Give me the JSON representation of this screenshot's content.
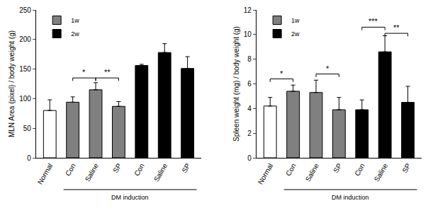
{
  "chart_data": [
    {
      "type": "bar",
      "y_label": "MLN Area (pixel) / body weight (g)",
      "categories": [
        "Normal",
        "Con",
        "Saline",
        "SP",
        "Con",
        "Saline",
        "SP"
      ],
      "ylim": [
        0,
        250
      ],
      "yticks": [
        0,
        50,
        100,
        150,
        200,
        250
      ],
      "grid": false,
      "legend": "upper left",
      "series": [
        {
          "color": "#ffffff",
          "values": [
            80,
            null,
            null,
            null,
            null,
            null,
            null
          ],
          "errors": [
            18,
            null,
            null,
            null,
            null,
            null,
            null
          ]
        },
        {
          "name": "1w",
          "color": "#808080",
          "values": [
            null,
            94,
            115,
            87,
            null,
            null,
            null
          ],
          "errors": [
            null,
            9,
            12,
            8,
            null,
            null,
            null
          ]
        },
        {
          "name": "2w",
          "color": "#000000",
          "values": [
            null,
            null,
            null,
            null,
            156,
            178,
            151
          ],
          "errors": [
            null,
            null,
            null,
            null,
            2,
            15,
            20
          ]
        }
      ],
      "annotations": [
        {
          "text": "DM induction",
          "from": 1,
          "to": 6
        }
      ],
      "significance": [
        {
          "from": 1,
          "to": 2,
          "y": 135,
          "label": "*"
        },
        {
          "from": 2,
          "to": 3,
          "y": 135,
          "label": "**"
        }
      ]
    },
    {
      "type": "bar",
      "y_label": "Spleen weight (mg) / body weight (g)",
      "categories": [
        "Normal",
        "Con",
        "Saline",
        "SP",
        "Con",
        "Saline",
        "SP"
      ],
      "ylim": [
        0,
        12
      ],
      "yticks": [
        0,
        2,
        4,
        6,
        8,
        10,
        12
      ],
      "grid": false,
      "legend": "upper left",
      "series": [
        {
          "color": "#ffffff",
          "values": [
            4.2,
            null,
            null,
            null,
            null,
            null,
            null
          ],
          "errors": [
            0.7,
            null,
            null,
            null,
            null,
            null,
            null
          ]
        },
        {
          "name": "1w",
          "color": "#808080",
          "values": [
            null,
            5.4,
            5.3,
            3.9,
            null,
            null,
            null
          ],
          "errors": [
            null,
            0.5,
            1.0,
            1.0,
            null,
            null,
            null
          ]
        },
        {
          "name": "2w",
          "color": "#000000",
          "values": [
            null,
            null,
            null,
            null,
            3.9,
            8.6,
            4.5
          ],
          "errors": [
            null,
            null,
            null,
            null,
            0.8,
            1.3,
            1.3
          ]
        }
      ],
      "annotations": [
        {
          "text": "DM induction",
          "from": 1,
          "to": 6
        }
      ],
      "significance": [
        {
          "from": 0,
          "to": 1,
          "y": 6.4,
          "label": "*"
        },
        {
          "from": 2,
          "to": 3,
          "y": 6.8,
          "label": "*"
        },
        {
          "from": 4,
          "to": 5,
          "y": 10.6,
          "label": "***"
        },
        {
          "from": 5,
          "to": 6,
          "y": 10.1,
          "label": "**"
        }
      ]
    }
  ]
}
